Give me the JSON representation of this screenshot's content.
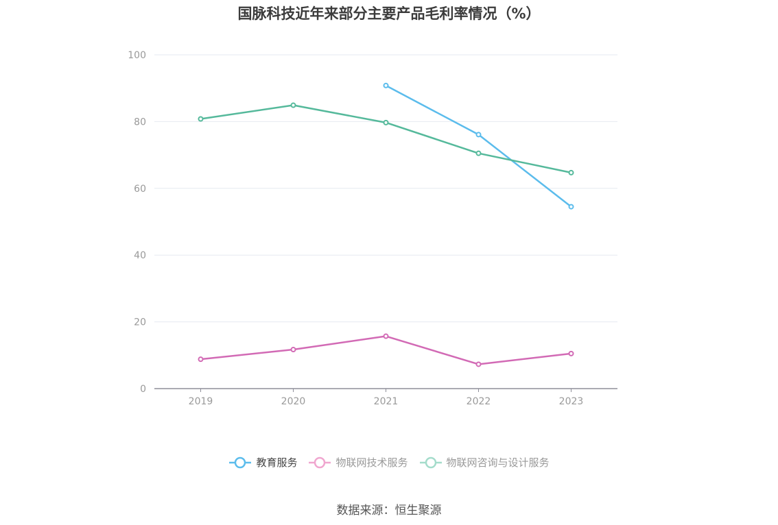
{
  "chart_data": {
    "type": "line",
    "title": "国脉科技近年来部分主要产品毛利率情况（%）",
    "categories": [
      "2019",
      "2020",
      "2021",
      "2022",
      "2023"
    ],
    "ylim": [
      0,
      100
    ],
    "yticks": [
      0,
      20,
      40,
      60,
      80,
      100
    ],
    "grid": true,
    "legend_position": "bottom",
    "series": [
      {
        "name": "教育服务",
        "color": "#5bbcec",
        "legend_color": "#5bbcec",
        "values": [
          null,
          null,
          90.8,
          76.1,
          54.5
        ]
      },
      {
        "name": "物联网技术服务",
        "color": "#d26ab5",
        "legend_color": "#f0a6cf",
        "values": [
          8.8,
          11.7,
          15.7,
          7.3,
          10.5
        ]
      },
      {
        "name": "物联网咨询与设计服务",
        "color": "#55b99b",
        "legend_color": "#a4dccb",
        "values": [
          80.8,
          84.9,
          79.7,
          70.5,
          64.7
        ]
      }
    ]
  },
  "source": "数据来源：恒生聚源"
}
